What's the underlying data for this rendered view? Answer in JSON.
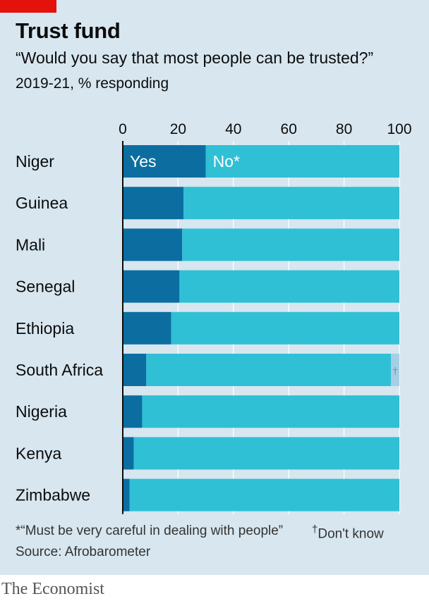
{
  "header": {
    "title": "Trust fund",
    "subtitle": "“Would you say that most people can be trusted?”",
    "units": "2019-21, % responding"
  },
  "footer": {
    "footnote": "*“Must be very careful in dealing with people”",
    "dont_know_mark": "†",
    "dont_know_label": "Don't know",
    "source": "Source: Afrobarometer",
    "brand": "The Economist"
  },
  "colors": {
    "yes": "#0c6ea0",
    "no": "#2fc0d6",
    "dont_know": "#a6cfe3",
    "zero_line": "#0c0c0c",
    "grid": "#ffffff"
  },
  "chart_data": {
    "type": "bar",
    "orientation": "horizontal",
    "stacked": true,
    "categories": [
      "Niger",
      "Guinea",
      "Mali",
      "Senegal",
      "Ethiopia",
      "South Africa",
      "Nigeria",
      "Kenya",
      "Zimbabwe"
    ],
    "series": [
      {
        "name": "Yes",
        "values": [
          30,
          22,
          21.5,
          20.5,
          17.5,
          8.5,
          7,
          4,
          2.5
        ]
      },
      {
        "name": "No*",
        "values": [
          70,
          78,
          78.5,
          79.5,
          82.5,
          88.5,
          93,
          96,
          97.5
        ]
      },
      {
        "name": "†",
        "values": [
          0,
          0,
          0,
          0,
          0,
          3,
          0,
          0,
          0
        ]
      }
    ],
    "xlim": [
      0,
      100
    ],
    "xticks": [
      0,
      20,
      40,
      60,
      80,
      100
    ],
    "grid": true,
    "legend": "inside first bar"
  }
}
